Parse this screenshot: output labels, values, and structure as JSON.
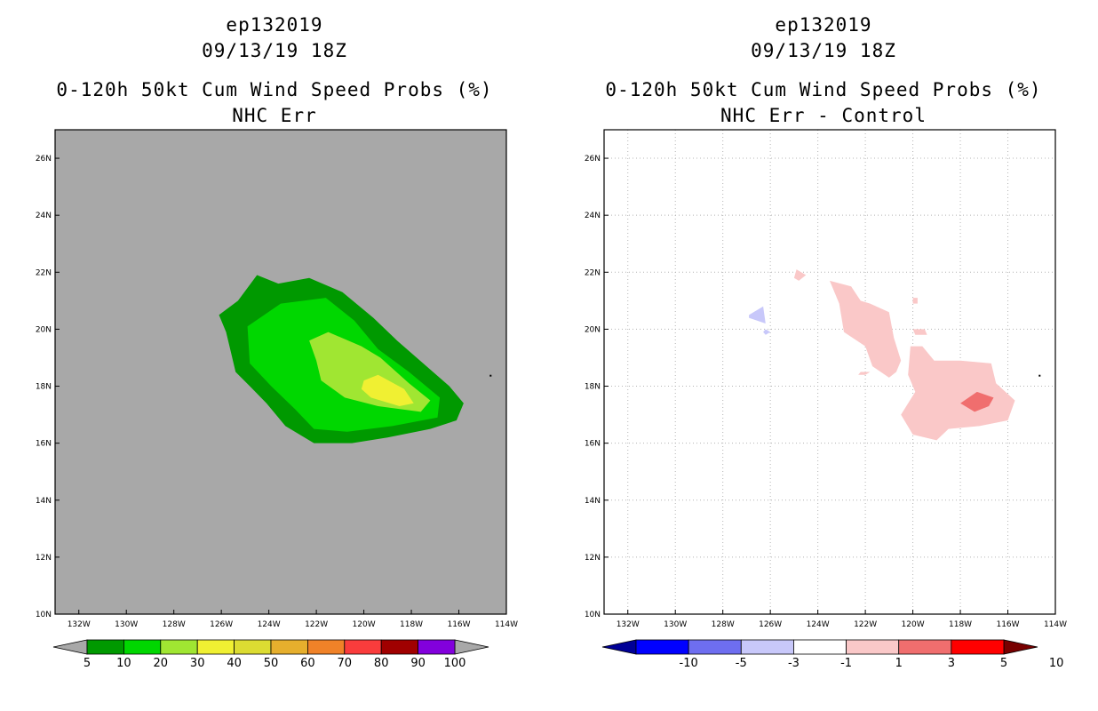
{
  "chart_data": [
    {
      "type": "filled-contour",
      "title": [
        "ep132019",
        "09/13/19 18Z",
        "0-120h 50kt Cum Wind Speed Probs (%)",
        "NHC Err"
      ],
      "x_ticks": [
        "132W",
        "130W",
        "128W",
        "126W",
        "124W",
        "122W",
        "120W",
        "118W",
        "116W",
        "114W"
      ],
      "y_ticks": [
        "10N",
        "12N",
        "14N",
        "16N",
        "18N",
        "20N",
        "22N",
        "24N",
        "26N"
      ],
      "xlim": [
        -133,
        -114
      ],
      "ylim": [
        10,
        27
      ],
      "background": "#a8a8a8",
      "colorbar": {
        "colors": [
          "#009900",
          "#00d700",
          "#a0e632",
          "#f0f032",
          "#dcdc32",
          "#e6af2d",
          "#f08228",
          "#fa3c3c",
          "#a00000",
          "#8200dc"
        ],
        "labels": [
          "5",
          "10",
          "20",
          "30",
          "40",
          "50",
          "60",
          "70",
          "80",
          "90",
          "100"
        ]
      },
      "contours": [
        {
          "level": "5-10",
          "color": "#009900",
          "polygon": [
            [
              -126.1,
              20.5
            ],
            [
              -125.3,
              21.0
            ],
            [
              -124.5,
              21.9
            ],
            [
              -123.6,
              21.6
            ],
            [
              -122.3,
              21.8
            ],
            [
              -120.9,
              21.3
            ],
            [
              -119.6,
              20.4
            ],
            [
              -118.6,
              19.6
            ],
            [
              -117.5,
              18.8
            ],
            [
              -116.4,
              18.0
            ],
            [
              -115.8,
              17.4
            ],
            [
              -116.1,
              16.8
            ],
            [
              -117.2,
              16.5
            ],
            [
              -119.0,
              16.2
            ],
            [
              -120.5,
              16.0
            ],
            [
              -122.1,
              16.0
            ],
            [
              -123.3,
              16.6
            ],
            [
              -124.1,
              17.4
            ],
            [
              -124.8,
              18.0
            ],
            [
              -125.4,
              18.5
            ],
            [
              -125.6,
              19.2
            ],
            [
              -125.8,
              19.9
            ]
          ]
        },
        {
          "level": "10-20",
          "color": "#00d700",
          "polygon": [
            [
              -124.9,
              20.1
            ],
            [
              -123.5,
              20.9
            ],
            [
              -121.6,
              21.1
            ],
            [
              -120.4,
              20.3
            ],
            [
              -119.4,
              19.3
            ],
            [
              -118.1,
              18.5
            ],
            [
              -116.8,
              17.6
            ],
            [
              -116.9,
              16.9
            ],
            [
              -118.8,
              16.6
            ],
            [
              -120.7,
              16.4
            ],
            [
              -122.1,
              16.5
            ],
            [
              -122.9,
              17.2
            ],
            [
              -123.9,
              18.0
            ],
            [
              -124.8,
              18.8
            ]
          ]
        },
        {
          "level": "20-30",
          "color": "#a0e632",
          "polygon": [
            [
              -122.3,
              19.6
            ],
            [
              -121.5,
              19.9
            ],
            [
              -120.1,
              19.4
            ],
            [
              -119.3,
              19.0
            ],
            [
              -118.1,
              18.1
            ],
            [
              -117.2,
              17.5
            ],
            [
              -117.6,
              17.1
            ],
            [
              -119.4,
              17.3
            ],
            [
              -120.8,
              17.6
            ],
            [
              -121.8,
              18.2
            ],
            [
              -122.0,
              18.9
            ]
          ]
        },
        {
          "level": "30-40",
          "color": "#f0f032",
          "polygon": [
            [
              -120.0,
              18.2
            ],
            [
              -119.4,
              18.4
            ],
            [
              -118.3,
              17.9
            ],
            [
              -117.9,
              17.4
            ],
            [
              -118.5,
              17.3
            ],
            [
              -119.7,
              17.6
            ],
            [
              -120.1,
              17.9
            ]
          ]
        }
      ]
    },
    {
      "type": "filled-contour",
      "title": [
        "ep132019",
        "09/13/19 18Z",
        "0-120h 50kt Cum Wind Speed Probs (%)",
        "NHC Err - Control"
      ],
      "x_ticks": [
        "132W",
        "130W",
        "128W",
        "126W",
        "124W",
        "122W",
        "120W",
        "118W",
        "116W",
        "114W"
      ],
      "y_ticks": [
        "10N",
        "12N",
        "14N",
        "16N",
        "18N",
        "20N",
        "22N",
        "24N",
        "26N"
      ],
      "xlim": [
        -133,
        -114
      ],
      "ylim": [
        10,
        27
      ],
      "background": "#ffffff",
      "grid": true,
      "colorbar": {
        "colors": [
          "#000096",
          "#0000ff",
          "#6e6ef0",
          "#c8c8fa",
          "#ffffff",
          "#fac8c8",
          "#f06e6e",
          "#ff0000",
          "#780000"
        ],
        "labels": [
          "-10",
          "-5",
          "-3",
          "-1",
          "1",
          "3",
          "5",
          "10"
        ]
      },
      "contours": [
        {
          "level": "-3 to -1",
          "color": "#c8c8fa",
          "polygon": [
            [
              -126.9,
              20.5
            ],
            [
              -126.3,
              20.8
            ],
            [
              -126.2,
              20.2
            ],
            [
              -126.9,
              20.4
            ]
          ]
        },
        {
          "level": "-3 to -1",
          "color": "#c8c8fa",
          "polygon": [
            [
              -126.2,
              20.0
            ],
            [
              -126.0,
              19.9
            ],
            [
              -126.2,
              19.8
            ],
            [
              -126.3,
              19.9
            ]
          ]
        },
        {
          "level": "1 to 3",
          "color": "#fac8c8",
          "polygon": [
            [
              -124.9,
              22.1
            ],
            [
              -124.5,
              21.9
            ],
            [
              -124.8,
              21.7
            ],
            [
              -125.0,
              21.8
            ]
          ]
        },
        {
          "level": "1 to 3",
          "color": "#fac8c8",
          "polygon": [
            [
              -123.5,
              21.7
            ],
            [
              -122.6,
              21.5
            ],
            [
              -122.2,
              21.0
            ],
            [
              -121.8,
              20.9
            ],
            [
              -121.0,
              20.6
            ],
            [
              -120.8,
              19.7
            ],
            [
              -120.5,
              18.9
            ],
            [
              -120.7,
              18.5
            ],
            [
              -121.0,
              18.3
            ],
            [
              -121.7,
              18.7
            ],
            [
              -122.0,
              19.4
            ],
            [
              -122.9,
              19.9
            ],
            [
              -123.1,
              20.9
            ]
          ]
        },
        {
          "level": "1 to 3",
          "color": "#fac8c8",
          "polygon": [
            [
              -122.2,
              18.5
            ],
            [
              -121.8,
              18.5
            ],
            [
              -122.0,
              18.4
            ],
            [
              -122.3,
              18.4
            ]
          ]
        },
        {
          "level": "1 to 3",
          "color": "#fac8c8",
          "polygon": [
            [
              -120.0,
              21.1
            ],
            [
              -119.8,
              21.1
            ],
            [
              -119.8,
              20.9
            ],
            [
              -120.0,
              20.9
            ]
          ]
        },
        {
          "level": "1 to 3",
          "color": "#fac8c8",
          "polygon": [
            [
              -120.0,
              20.0
            ],
            [
              -119.5,
              20.0
            ],
            [
              -119.4,
              19.8
            ],
            [
              -119.9,
              19.8
            ]
          ]
        },
        {
          "level": "1 to 3",
          "color": "#fac8c8",
          "polygon": [
            [
              -120.1,
              19.4
            ],
            [
              -119.6,
              19.4
            ],
            [
              -119.1,
              18.9
            ],
            [
              -118.0,
              18.9
            ],
            [
              -116.7,
              18.8
            ],
            [
              -116.5,
              18.1
            ],
            [
              -115.7,
              17.5
            ],
            [
              -116.0,
              16.8
            ],
            [
              -117.2,
              16.6
            ],
            [
              -118.5,
              16.5
            ],
            [
              -119.0,
              16.1
            ],
            [
              -120.0,
              16.3
            ],
            [
              -120.5,
              17.0
            ],
            [
              -119.9,
              17.8
            ],
            [
              -120.2,
              18.4
            ]
          ]
        },
        {
          "level": "3 to 5",
          "color": "#f06e6e",
          "polygon": [
            [
              -117.3,
              17.8
            ],
            [
              -116.6,
              17.6
            ],
            [
              -116.8,
              17.3
            ],
            [
              -117.4,
              17.1
            ],
            [
              -118.0,
              17.4
            ]
          ]
        }
      ]
    }
  ]
}
